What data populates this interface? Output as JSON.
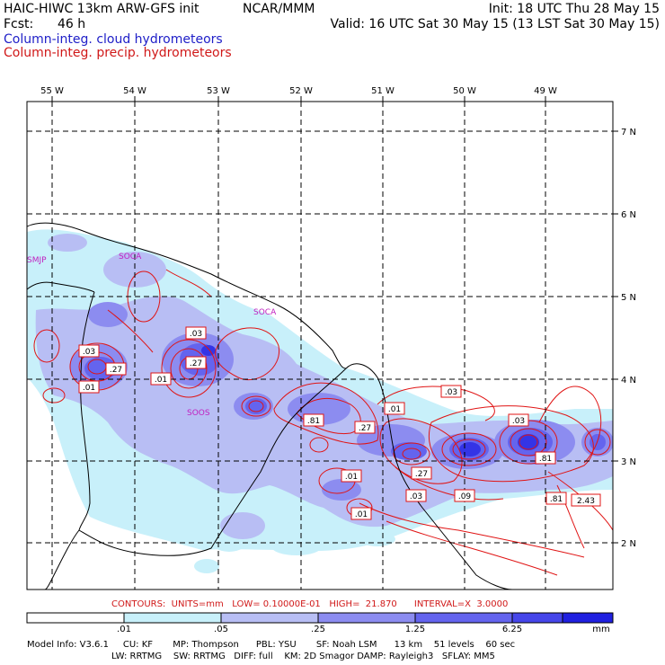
{
  "header": {
    "title_left": "HAIC-HIWC 13km ARW-GFS init",
    "title_org": "NCAR/MMM",
    "init": "Init: 18 UTC Thu 28 May 15",
    "fcst_label": "Fcst:",
    "fcst_value": "46 h",
    "valid": "Valid: 16 UTC Sat 30 May 15 (13 LST Sat 30 May 15)",
    "field_cloud": "Column-integ. cloud hydrometeors",
    "field_precip": "Column-integ. precip. hydrometeors"
  },
  "map": {
    "lon_labels": [
      "55 W",
      "54 W",
      "53 W",
      "52 W",
      "51 W",
      "50 W",
      "49 W"
    ],
    "lat_labels": [
      "7 N",
      "6 N",
      "5 N",
      "4 N",
      "3 N",
      "2 N"
    ],
    "station_labels": [
      "SMJP",
      "SOCA",
      "SOCA",
      "SOOS"
    ],
    "contour_labels": [
      ".03",
      ".27",
      ".01",
      ".03",
      ".27",
      ".01",
      ".81",
      ".27",
      ".01",
      ".03",
      ".01",
      ".27",
      ".03",
      ".09",
      ".01",
      ".03",
      ".81",
      ".81",
      "2.43"
    ],
    "colors": {
      "shade_light": "#c8f0fa",
      "shade_mid1": "#b8bef4",
      "shade_mid2": "#8c8cf0",
      "shade_mid3": "#6464ee",
      "shade_dark": "#3434e6",
      "contour": "#e01414",
      "border": "#000000"
    }
  },
  "contour_info": "CONTOURS:  UNITS=mm   LOW= 0.10000E-01   HIGH=  21.870      INTERVAL=X  3.0000",
  "colorbar": {
    "labels": [
      ".01",
      ".05",
      ".25",
      "1.25",
      "6.25"
    ],
    "units": "mm",
    "colors": [
      "#ffffff",
      "#c8f0fa",
      "#b8bef4",
      "#8c8cf0",
      "#6464ee",
      "#4646ea",
      "#2020e0"
    ]
  },
  "model_info": {
    "line1": "Model Info: V3.6.1     CU: KF       MP: Thompson      PBL: YSU       SF: Noah LSM      13 km    51 levels    60 sec",
    "line2": "LW: RRTMG    SW: RRTMG   DIFF: full    KM: 2D Smagor DAMP: Rayleigh3   SFLAY: MM5"
  }
}
